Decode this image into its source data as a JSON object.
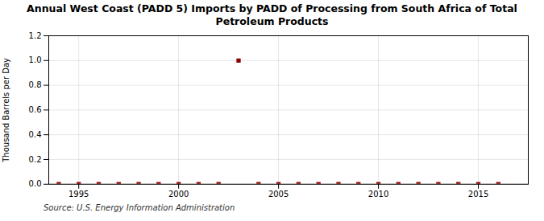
{
  "chart_data": {
    "type": "scatter",
    "title": "Annual West Coast (PADD 5) Imports by PADD of Processing from South Africa of Total\nPetroleum Products",
    "ylabel": "Thousand Barrels per Day",
    "source": "Source: U.S. Energy Information Administration",
    "x": [
      1994,
      1995,
      1996,
      1997,
      1998,
      1999,
      2000,
      2001,
      2002,
      2003,
      2004,
      2005,
      2006,
      2007,
      2008,
      2009,
      2010,
      2011,
      2012,
      2013,
      2014,
      2015,
      2016
    ],
    "values": [
      0,
      0,
      0,
      0,
      0,
      0,
      0,
      0,
      0,
      1.0,
      0,
      0,
      0,
      0,
      0,
      0,
      0,
      0,
      0,
      0,
      0,
      0,
      0
    ],
    "color": "#8b0000",
    "marker": "square",
    "xlim": [
      1993.5,
      2017.5
    ],
    "ylim": [
      0.0,
      1.2
    ],
    "xticks": [
      1995,
      2000,
      2005,
      2010,
      2015
    ],
    "yticks": [
      {
        "value": 0.0,
        "label": "0.0"
      },
      0.2,
      0.4,
      0.6,
      0.8,
      {
        "value": 1.0,
        "label": "1.0"
      },
      1.2
    ],
    "grid": true
  }
}
